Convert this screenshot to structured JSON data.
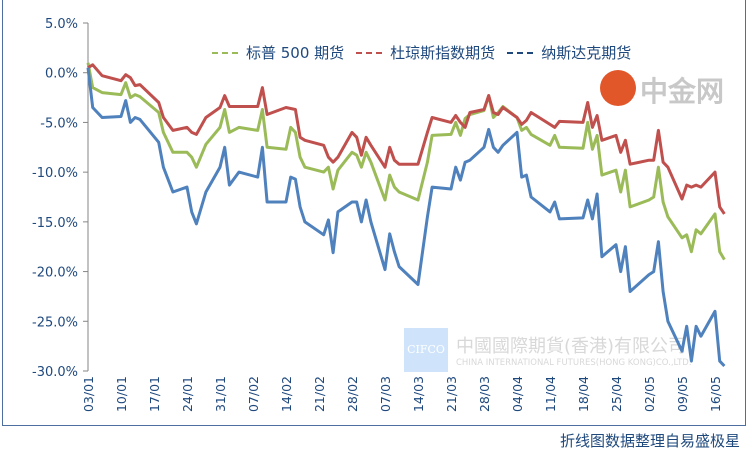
{
  "chart_data": {
    "type": "line",
    "title": "",
    "xlabel": "",
    "ylabel": "",
    "ylim": [
      -30,
      5
    ],
    "ytick_step": 5,
    "yticks": [
      "5.0%",
      "0.0%",
      "-5.0%",
      "-10.0%",
      "-15.0%",
      "-20.0%",
      "-25.0%",
      "-30.0%"
    ],
    "xticks": [
      "03/01",
      "10/01",
      "17/01",
      "24/01",
      "31/01",
      "07/02",
      "14/02",
      "21/02",
      "28/02",
      "07/03",
      "14/03",
      "21/03",
      "28/03",
      "04/04",
      "11/04",
      "18/04",
      "25/04",
      "02/05",
      "09/05",
      "16/05"
    ],
    "grid": false,
    "legend_placement": "top",
    "x": [
      "03/01",
      "04/01",
      "06/01",
      "10/01",
      "11/01",
      "12/01",
      "13/01",
      "14/01",
      "18/01",
      "19/01",
      "21/01",
      "24/01",
      "25/01",
      "26/01",
      "28/01",
      "31/01",
      "01/02",
      "02/02",
      "04/02",
      "08/02",
      "09/02",
      "10/02",
      "14/02",
      "15/02",
      "16/02",
      "17/02",
      "18/02",
      "22/02",
      "23/02",
      "24/02",
      "25/02",
      "28/02",
      "01/03",
      "02/03",
      "03/03",
      "04/03",
      "07/03",
      "08/03",
      "09/03",
      "10/03",
      "14/03",
      "16/03",
      "17/03",
      "21/03",
      "22/03",
      "23/03",
      "24/03",
      "25/03",
      "28/03",
      "29/03",
      "30/03",
      "31/03",
      "01/04",
      "04/04",
      "05/04",
      "06/04",
      "07/04",
      "11/04",
      "12/04",
      "13/04",
      "18/04",
      "19/04",
      "20/04",
      "21/04",
      "22/04",
      "25/04",
      "26/04",
      "27/04",
      "28/04",
      "02/05",
      "03/05",
      "04/05",
      "05/05",
      "06/05",
      "09/05",
      "10/05",
      "11/05",
      "12/05",
      "13/05",
      "16/05",
      "17/05",
      "18/05"
    ],
    "series": [
      {
        "name": "标普 500 期货",
        "color": "#9bbb59",
        "values": [
          1.0,
          -1.5,
          -2.0,
          -2.2,
          -1.0,
          -2.5,
          -2.2,
          -2.4,
          -4,
          -6,
          -8,
          -8,
          -8.5,
          -9.5,
          -7.2,
          -5.5,
          -3.7,
          -6.0,
          -5.5,
          -5.8,
          -3.7,
          -7.5,
          -7.7,
          -5.5,
          -6,
          -8.5,
          -9.5,
          -10,
          -9.5,
          -11.7,
          -9.8,
          -8,
          -8.3,
          -9.5,
          -8,
          -9,
          -12.8,
          -10.3,
          -11.5,
          -12,
          -12.8,
          -9,
          -6.3,
          -6.2,
          -5,
          -6.3,
          -4.6,
          -4.2,
          -3.8,
          -2.3,
          -4.5,
          -4.0,
          -3.4,
          -4.5,
          -5.8,
          -5.5,
          -6.2,
          -7.3,
          -6.3,
          -7.5,
          -7.6,
          -5,
          -7.7,
          -6.3,
          -10.3,
          -9.8,
          -12,
          -9.8,
          -13.5,
          -12.8,
          -12.5,
          -9.5,
          -13,
          -14.5,
          -16.6,
          -16.3,
          -18,
          -15.8,
          -16.2,
          -14.2,
          -18,
          -18.8
        ]
      },
      {
        "name": "杜琼斯指数期货",
        "color": "#c0504d",
        "values": [
          0.5,
          0.8,
          -0.3,
          -0.8,
          -0.2,
          -0.5,
          -1.3,
          -1.2,
          -3,
          -4.5,
          -5.8,
          -5.5,
          -6.0,
          -6.2,
          -4.5,
          -3.5,
          -2.3,
          -3.4,
          -3.4,
          -3.4,
          -1.5,
          -4.2,
          -3.5,
          -3.6,
          -3.7,
          -6.5,
          -6.8,
          -7.3,
          -8.5,
          -9,
          -8.5,
          -6,
          -6.5,
          -8.3,
          -6.5,
          -7.3,
          -9.5,
          -7.5,
          -8.8,
          -9.2,
          -9.2,
          -6,
          -4.5,
          -5,
          -4.3,
          -5.0,
          -5.5,
          -4,
          -3.7,
          -2.3,
          -4.0,
          -4.2,
          -3.5,
          -4.5,
          -5.2,
          -4.8,
          -4,
          -5.2,
          -5.5,
          -4.9,
          -5.0,
          -3.0,
          -5.5,
          -4.3,
          -6.8,
          -6.3,
          -8,
          -6.8,
          -9.2,
          -8.8,
          -8.8,
          -5.8,
          -9,
          -9.5,
          -12.7,
          -11.3,
          -11.5,
          -11.3,
          -11.5,
          -10,
          -13.5,
          -14.2
        ]
      },
      {
        "name": "纳斯达克期货",
        "color": "#4f81bd",
        "values": [
          0.5,
          -3.5,
          -4.5,
          -4.4,
          -2.8,
          -5.0,
          -4.5,
          -4.7,
          -7,
          -9.5,
          -12,
          -11.5,
          -14,
          -15.2,
          -12,
          -9.5,
          -7.5,
          -11.3,
          -10,
          -10.5,
          -7.5,
          -13,
          -13,
          -10.5,
          -10.7,
          -13.5,
          -15,
          -16.3,
          -14.8,
          -18.1,
          -14,
          -13,
          -13,
          -15,
          -12.8,
          -15,
          -19.8,
          -16.2,
          -18,
          -19.5,
          -21.3,
          -14.5,
          -11.5,
          -11.7,
          -9.5,
          -10.8,
          -9,
          -8.8,
          -7.5,
          -5.7,
          -7.5,
          -8.0,
          -7.3,
          -6,
          -10.5,
          -10.3,
          -12.5,
          -14,
          -13,
          -14.7,
          -14.6,
          -12.8,
          -14.7,
          -12.2,
          -18.5,
          -17.3,
          -20,
          -17.5,
          -22,
          -20.3,
          -20,
          -17,
          -22,
          -25,
          -28,
          -25.5,
          -29,
          -25.5,
          -26.5,
          -24,
          -29,
          -29.5
        ]
      }
    ]
  },
  "footer": "折线图数据整理自易盛极星",
  "watermarks": {
    "cifco_logo": "CIFCO",
    "cifco_cn": "中國國際期貨(香港)有限公司",
    "cifco_en": "CHINA INTERNATIONAL FUTURES(HONG KONG)CO.,LTD.",
    "cngold": "中金网"
  }
}
